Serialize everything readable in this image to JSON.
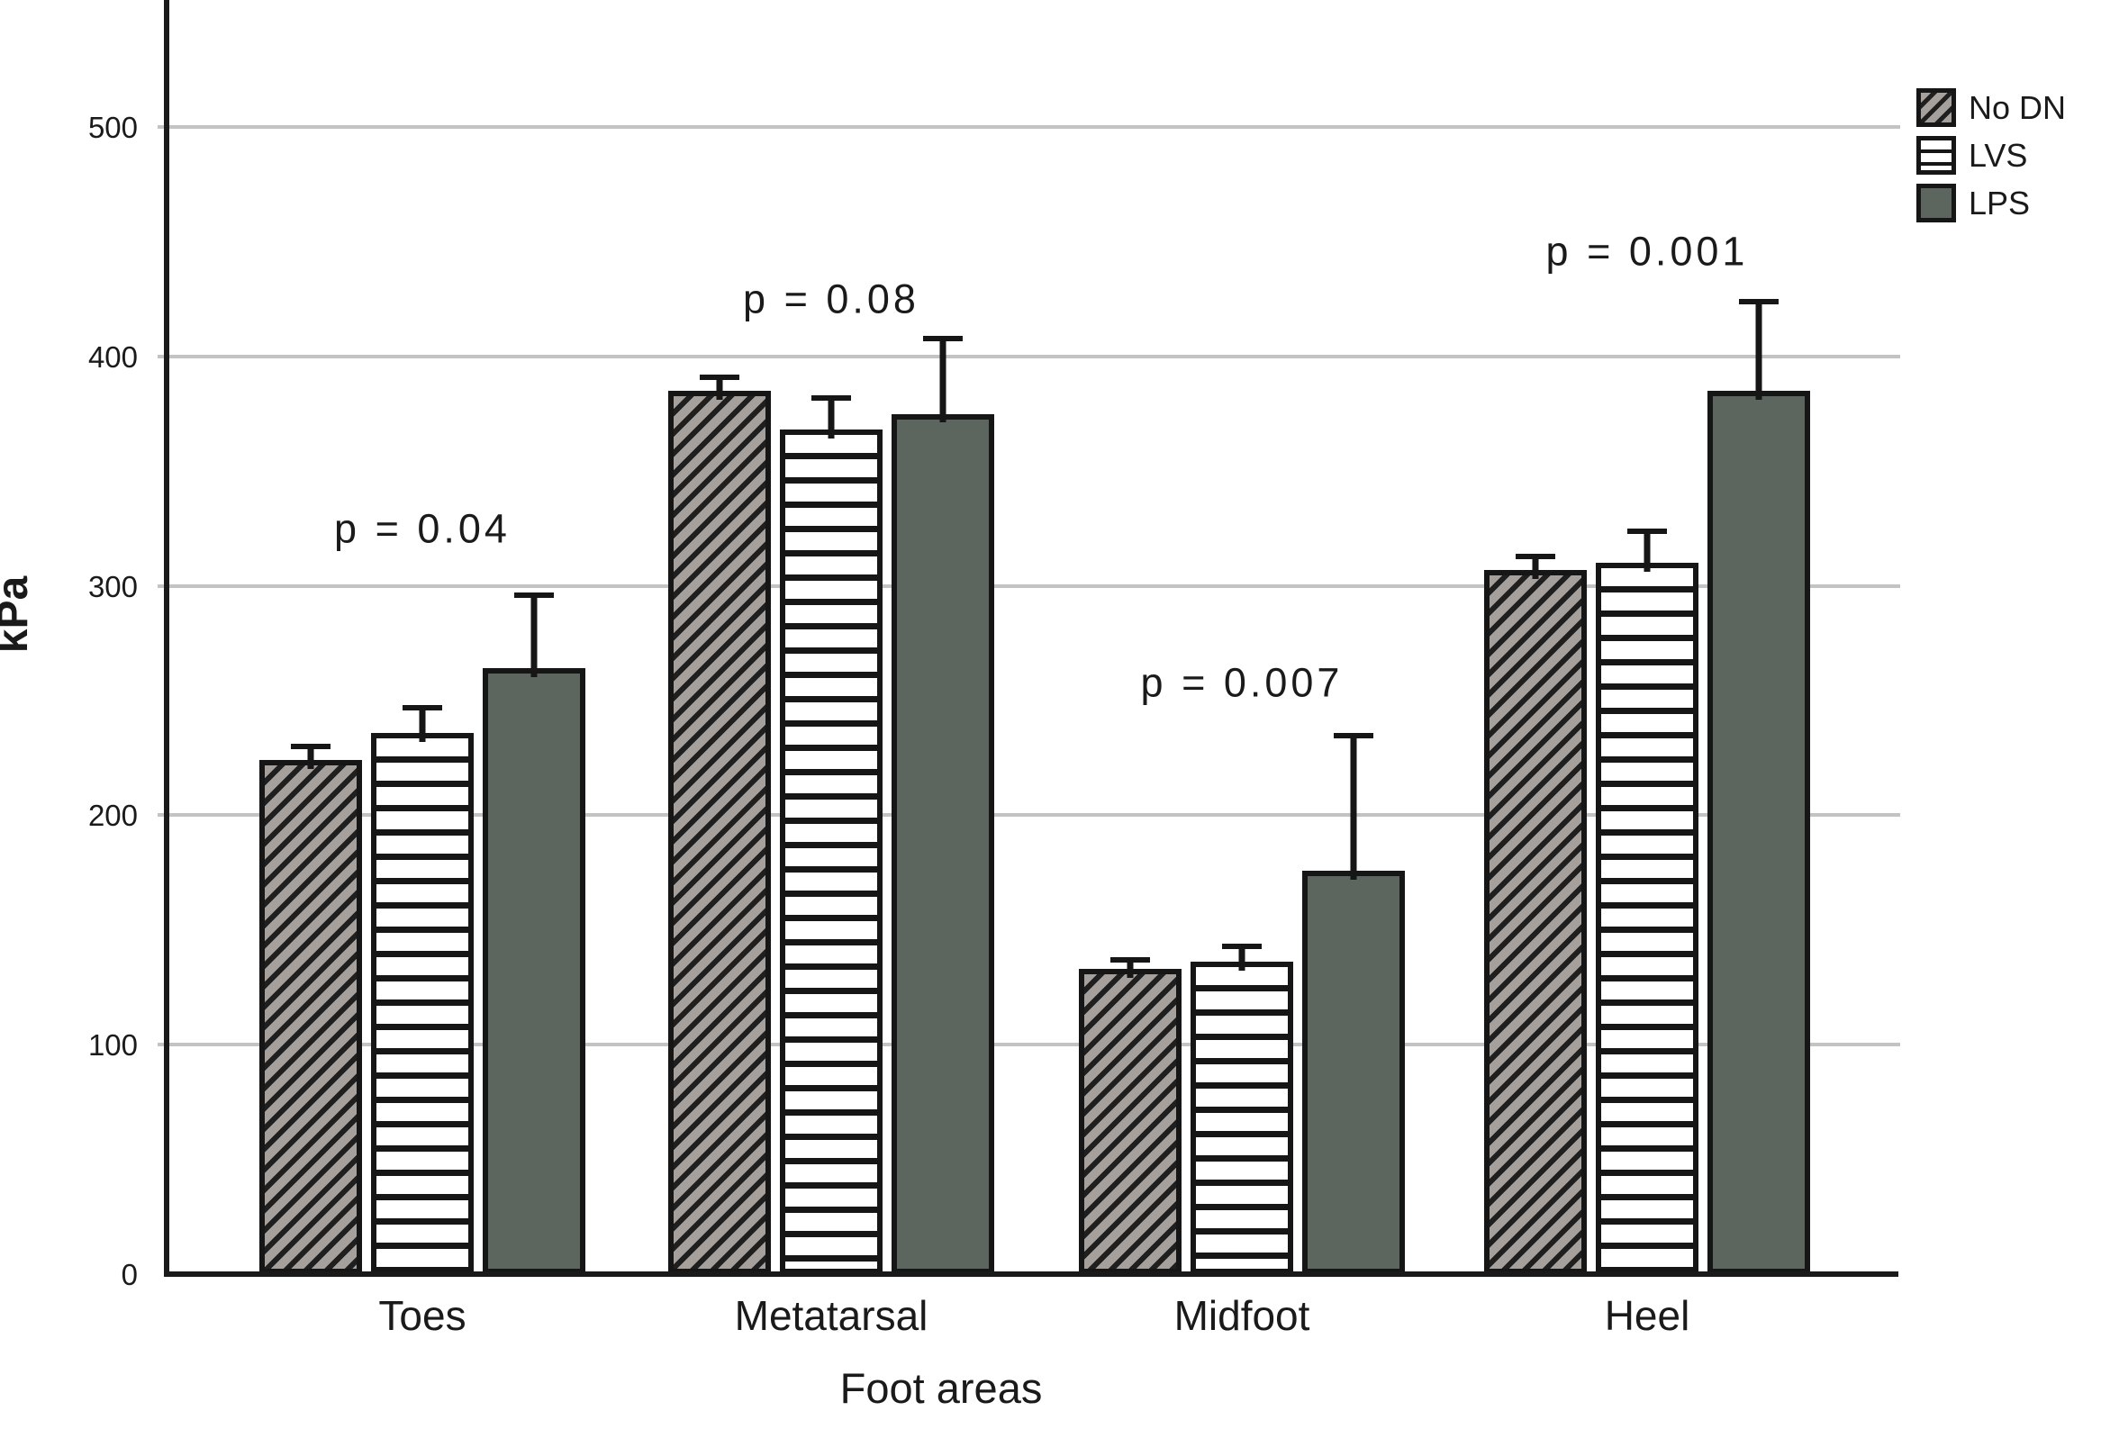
{
  "chart_data": {
    "type": "bar",
    "title": "",
    "xlabel": "Foot areas",
    "ylabel": "kPa",
    "ylim": [
      0,
      550
    ],
    "yticks": [
      "0",
      "100",
      "200",
      "300",
      "400",
      "500"
    ],
    "ytick_values": [
      0,
      100,
      200,
      300,
      400,
      500
    ],
    "grid": "horizontal",
    "legend_position": "top-right",
    "categories": [
      "Toes",
      "Metatarsal",
      "Midfoot",
      "Heel"
    ],
    "series": [
      {
        "name": "No DN",
        "pattern": "diagonal-hatch",
        "fill": "#a6a09d",
        "values": [
          224,
          385,
          133,
          307
        ],
        "error_upper": [
          231,
          392,
          138,
          314
        ]
      },
      {
        "name": "LVS",
        "pattern": "horizontal-stripes",
        "fill": "#ffffff",
        "values": [
          236,
          368,
          136,
          310
        ],
        "error_upper": [
          248,
          383,
          144,
          325
        ]
      },
      {
        "name": "LPS",
        "pattern": "solid",
        "fill": "#5c665f",
        "values": [
          264,
          375,
          176,
          385
        ],
        "error_upper": [
          297,
          409,
          236,
          425
        ]
      }
    ],
    "annotations": [
      {
        "text": "p = 0.04",
        "category": "Toes",
        "y_kpa": 325
      },
      {
        "text": "p = 0.08",
        "category": "Metatarsal",
        "y_kpa": 425
      },
      {
        "text": "p = 0.007",
        "category": "Midfoot",
        "y_kpa": 258
      },
      {
        "text": "p = 0.001",
        "category": "Heel",
        "y_kpa": 446
      }
    ],
    "colors": {
      "axis": "#1a1a1a",
      "gridline": "#c3c3c3",
      "bar_border": "#161616",
      "lps_solid": "#5c665f",
      "no_dn_gray": "#a6a09d"
    }
  }
}
